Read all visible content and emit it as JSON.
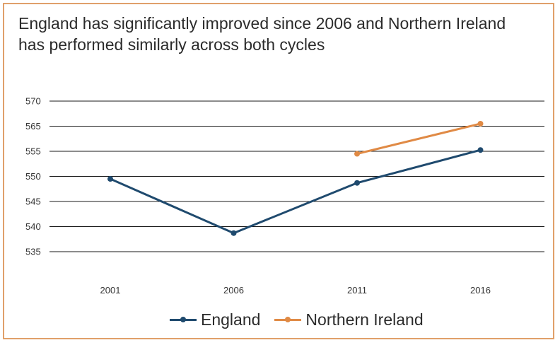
{
  "chart_data": {
    "type": "line",
    "title": "England has significantly improved since 2006 and Northern Ireland has performed similarly across both cycles",
    "title_lines": [
      "England has significantly improved since 2006 and Northern Ireland",
      "has performed similarly across both cycles"
    ],
    "categories": [
      "2001",
      "2006",
      "2011",
      "2016"
    ],
    "y_ticks": [
      "570",
      "565",
      "555",
      "550",
      "545",
      "540",
      "535"
    ],
    "series": [
      {
        "name": "England",
        "color": "#1f4a6e",
        "values": [
          549.5,
          538.7,
          548.7,
          555.5
        ]
      },
      {
        "name": "Northern Ireland",
        "color": "#e08a45",
        "values": [
          null,
          null,
          554.5,
          565.5
        ]
      }
    ],
    "grid": true,
    "legend_position": "bottom"
  },
  "colors": {
    "border": "#e0a06a",
    "gridline": "#1a1a1a"
  }
}
